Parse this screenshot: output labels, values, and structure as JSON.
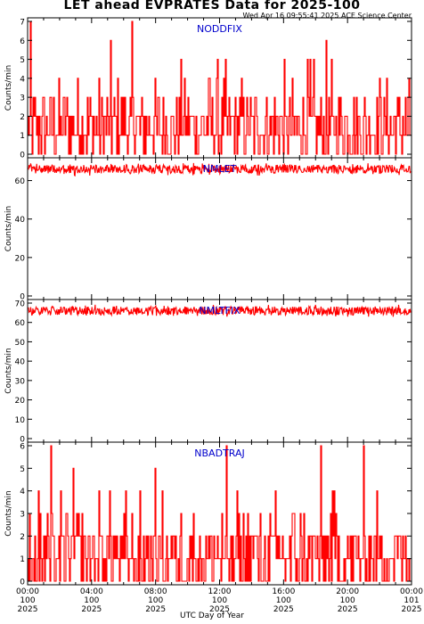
{
  "title": "LET ahead EVPRATES Data for 2025-100",
  "timestamp": "Wed Apr 16 09:55:41 2025 ACE Science Center",
  "xlabel": "UTC Day of Year",
  "colors": {
    "data": "#ff0000",
    "panel_title": "#0000cc",
    "axes": "#000000"
  },
  "xticks": [
    {
      "t": 0,
      "time": "00:00",
      "doy": "100",
      "year": "2025"
    },
    {
      "t": 4,
      "time": "04:00",
      "doy": "100",
      "year": "2025"
    },
    {
      "t": 8,
      "time": "08:00",
      "doy": "100",
      "year": "2025"
    },
    {
      "t": 12,
      "time": "12:00",
      "doy": "100",
      "year": "2025"
    },
    {
      "t": 16,
      "time": "16:00",
      "doy": "100",
      "year": "2025"
    },
    {
      "t": 20,
      "time": "20:00",
      "doy": "100",
      "year": "2025"
    },
    {
      "t": 24,
      "time": "00:00",
      "doy": "101",
      "year": "2025"
    }
  ],
  "chart_data": [
    {
      "type": "line",
      "name": "NODDFIX",
      "ylabel": "Counts/min",
      "xlim_hours": [
        0,
        24
      ],
      "ylim": [
        0,
        7
      ],
      "yticks": [
        0,
        1,
        2,
        3,
        4,
        5,
        6,
        7
      ],
      "typical": "mostly 0-3 counts/min, spikes to 5-7",
      "min": 0,
      "max": 7
    },
    {
      "type": "line",
      "name": "NMLET",
      "ylabel": "Counts/min",
      "xlim_hours": [
        0,
        24
      ],
      "ylim": [
        0,
        70
      ],
      "yticks": [
        0,
        20,
        40,
        60
      ],
      "typical": "steady ~66 counts/min",
      "min": 62,
      "max": 69
    },
    {
      "type": "line",
      "name": "NMLTFIX",
      "ylabel": "Counts/min",
      "xlim_hours": [
        0,
        24
      ],
      "ylim": [
        0,
        70
      ],
      "yticks": [
        0,
        10,
        20,
        30,
        40,
        50,
        60,
        70
      ],
      "typical": "steady ~66 counts/min",
      "min": 62,
      "max": 69
    },
    {
      "type": "line",
      "name": "NBADTRAJ",
      "ylabel": "Counts/min",
      "xlim_hours": [
        0,
        24
      ],
      "ylim": [
        0,
        6
      ],
      "yticks": [
        0,
        1,
        2,
        3,
        4,
        5,
        6
      ],
      "typical": "mostly 0-2 counts/min, spikes to 4-6",
      "min": 0,
      "max": 6
    }
  ]
}
